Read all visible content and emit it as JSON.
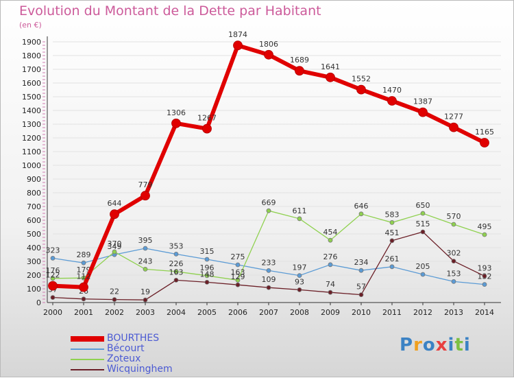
{
  "header": {
    "title": "Evolution du Montant de la Dette par Habitant",
    "unit": "(en €)"
  },
  "chart_data": {
    "type": "line",
    "title": "Evolution du Montant de la Dette par Habitant",
    "ylabel": "(en €)",
    "xlabel": "",
    "ylim": [
      0,
      1900
    ],
    "yticks": [
      0,
      100,
      200,
      300,
      400,
      500,
      600,
      700,
      800,
      900,
      1000,
      1100,
      1200,
      1300,
      1400,
      1500,
      1600,
      1700,
      1800,
      1900
    ],
    "x": [
      "2000",
      "2001",
      "2002",
      "2003",
      "2004",
      "2005",
      "2006",
      "2007",
      "2008",
      "2009",
      "2010",
      "2011",
      "2012",
      "2013",
      "2014"
    ],
    "grid": "horizontal",
    "legend_position": "bottom-left",
    "series": [
      {
        "name": "BOURTHES",
        "color": "#e00000",
        "emphasis": true,
        "values": [
          122,
          112,
          644,
          779,
          1306,
          1267,
          1874,
          1806,
          1689,
          1641,
          1552,
          1470,
          1387,
          1277,
          1165
        ]
      },
      {
        "name": "Bécourt",
        "color": "#5b9bd5",
        "values": [
          323,
          289,
          349,
          395,
          353,
          315,
          275,
          233,
          197,
          276,
          234,
          261,
          205,
          153,
          132
        ]
      },
      {
        "name": "Zoteux",
        "color": "#8fd14f",
        "values": [
          176,
          179,
          370,
          243,
          226,
          196,
          163,
          669,
          611,
          454,
          646,
          583,
          650,
          570,
          495
        ]
      },
      {
        "name": "Wicquinghem",
        "color": "#6b1f27",
        "values": [
          37,
          26,
          22,
          19,
          163,
          148,
          129,
          109,
          93,
          74,
          57,
          451,
          515,
          302,
          193
        ]
      }
    ]
  },
  "legend": {
    "items": [
      {
        "label": "BOURTHES",
        "color": "#e00000"
      },
      {
        "label": "Bécourt",
        "color": "#5b9bd5"
      },
      {
        "label": "Zoteux",
        "color": "#8fd14f"
      },
      {
        "label": "Wicquinghem",
        "color": "#6b1f27"
      }
    ]
  },
  "brand": {
    "letters": [
      "P",
      "r",
      "o",
      "x",
      "i",
      "t",
      "i"
    ],
    "colors": [
      "#3b82c4",
      "#f0a020",
      "#3b82c4",
      "#e84040",
      "#3b82c4",
      "#7cc043",
      "#3b82c4"
    ]
  }
}
